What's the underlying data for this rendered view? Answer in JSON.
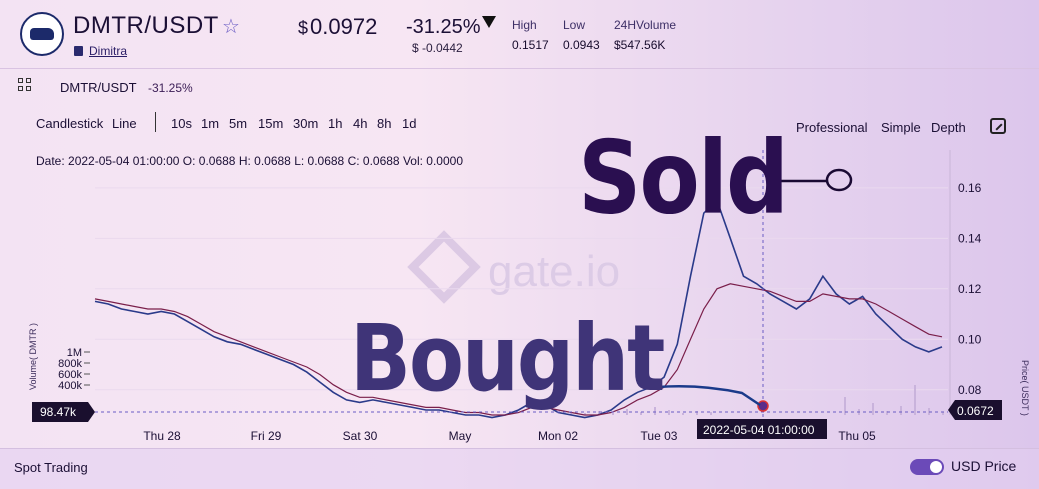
{
  "header": {
    "pair": "DMTR/USDT",
    "name": "Dimitra",
    "price_currency": "$",
    "price": "0.0972",
    "change_pct": "-31.25%",
    "change_abs": "$ -0.0442",
    "high_label": "High",
    "high_value": "0.1517",
    "low_label": "Low",
    "low_value": "0.0943",
    "volume_label": "24HVolume",
    "volume_value": "$547.56K",
    "star_icon": "star-icon",
    "logo_icon": "bull-logo-icon"
  },
  "subheader": {
    "pair": "DMTR/USDT",
    "change_pct": "-31.25%"
  },
  "toolbar": {
    "chart_types": [
      "Candlestick",
      "Line"
    ],
    "intervals": [
      "10s",
      "1m",
      "5m",
      "15m",
      "30m",
      "1h",
      "4h",
      "8h",
      "1d"
    ],
    "views": [
      "Professional",
      "Simple",
      "Depth"
    ]
  },
  "ohlc": {
    "text": "Date: 2022-05-04 01:00:00 O: 0.0688 H: 0.0688 L: 0.0688 C: 0.0688 Vol: 0.0000"
  },
  "watermark": "gate.io",
  "chart_data": {
    "type": "line",
    "x_ticks": [
      "Thu 28",
      "Fri 29",
      "Sat 30",
      "May",
      "Mon 02",
      "Tue 03",
      "Thu 05"
    ],
    "y_ticks": [
      "0.16",
      "0.14",
      "0.12",
      "0.10",
      "0.08"
    ],
    "volume_ticks": [
      "1M",
      "800k",
      "600k",
      "400k"
    ],
    "volume_axis_label": "Volume( DMTR )",
    "price_axis_label": "Price( USDT )",
    "crosshair_date": "2022-05-04 01:00:00",
    "volume_readout": "98.47k",
    "price_readout": "0.0672",
    "ylim": [
      0.07,
      0.175
    ],
    "series": [
      {
        "values": [
          0.115,
          0.114,
          0.112,
          0.111,
          0.11,
          0.111,
          0.11,
          0.107,
          0.104,
          0.101,
          0.099,
          0.098,
          0.096,
          0.094,
          0.092,
          0.09,
          0.087,
          0.083,
          0.079,
          0.076,
          0.075,
          0.076,
          0.075,
          0.074,
          0.073,
          0.072,
          0.072,
          0.071,
          0.07,
          0.07,
          0.069,
          0.07,
          0.072,
          0.075,
          0.074,
          0.071,
          0.07,
          0.069,
          0.07,
          0.072,
          0.076,
          0.079,
          0.081,
          0.085,
          0.098,
          0.125,
          0.15,
          0.155,
          0.14,
          0.125,
          0.122,
          0.118,
          0.115,
          0.112,
          0.116,
          0.125,
          0.118,
          0.114,
          0.117,
          0.11,
          0.105,
          0.1,
          0.097,
          0.095,
          0.097
        ],
        "color": "#2a3a8a"
      },
      {
        "values": [
          0.116,
          0.115,
          0.114,
          0.113,
          0.112,
          0.112,
          0.111,
          0.109,
          0.106,
          0.103,
          0.101,
          0.099,
          0.097,
          0.095,
          0.093,
          0.091,
          0.089,
          0.086,
          0.082,
          0.079,
          0.077,
          0.077,
          0.076,
          0.075,
          0.074,
          0.073,
          0.073,
          0.072,
          0.071,
          0.071,
          0.07,
          0.07,
          0.071,
          0.073,
          0.073,
          0.072,
          0.071,
          0.07,
          0.07,
          0.071,
          0.073,
          0.076,
          0.078,
          0.081,
          0.088,
          0.1,
          0.112,
          0.12,
          0.122,
          0.121,
          0.12,
          0.119,
          0.117,
          0.115,
          0.115,
          0.118,
          0.117,
          0.116,
          0.116,
          0.114,
          0.111,
          0.108,
          0.105,
          0.102,
          0.101
        ],
        "color": "#7a1f4a"
      }
    ]
  },
  "overlay": {
    "sold": "Sold",
    "bought": "Bought"
  },
  "footer": {
    "spot_trading": "Spot Trading",
    "usd_price": "USD Price"
  },
  "colors": {
    "accent": "#6b4ab8",
    "readout_bg": "#1a0f2e"
  }
}
